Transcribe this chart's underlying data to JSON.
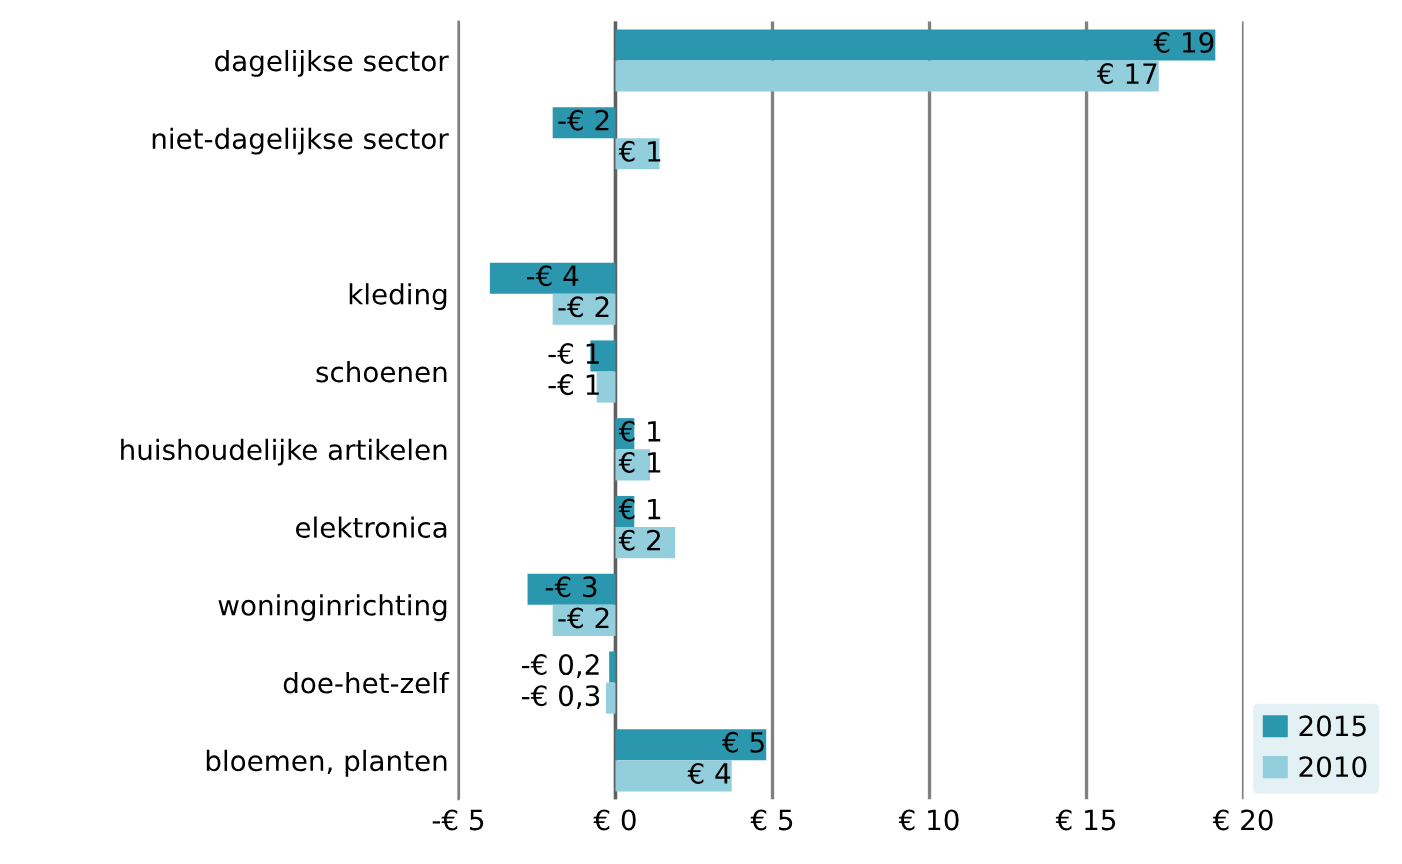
{
  "chart_data": {
    "type": "bar",
    "orientation": "horizontal",
    "categories": [
      "dagelijkse sector",
      "niet-dagelijkse sector",
      null,
      "kleding",
      "schoenen",
      "huishoudelijke artikelen",
      "elektronica",
      "woninginrichting",
      "doe-het-zelf",
      "bloemen, planten"
    ],
    "series": [
      {
        "name": "2015",
        "color": "#2a97ae",
        "values": [
          19.1,
          -2.0,
          null,
          -4.0,
          -0.8,
          0.6,
          0.6,
          -2.8,
          -0.2,
          4.8
        ],
        "value_labels": [
          "€ 19",
          "-€ 2",
          null,
          "-€ 4",
          "-€ 1",
          "€ 1",
          "€ 1",
          "-€ 3",
          "-€ 0,2",
          "€ 5"
        ]
      },
      {
        "name": "2010",
        "color": "#93cedc",
        "values": [
          17.3,
          1.4,
          null,
          -2.0,
          -0.6,
          1.1,
          1.9,
          -2.0,
          -0.3,
          3.7
        ],
        "value_labels": [
          "€ 17",
          "€ 1",
          null,
          "-€ 2",
          "-€ 1",
          "€ 1",
          "€ 2",
          "-€ 2",
          "-€ 0,3",
          "€ 4"
        ]
      }
    ],
    "xlim": [
      -5,
      20
    ],
    "xticks": [
      {
        "value": -5,
        "label": "-€ 5"
      },
      {
        "value": 0,
        "label": "€ 0"
      },
      {
        "value": 5,
        "label": "€ 5"
      },
      {
        "value": 10,
        "label": "€ 10"
      },
      {
        "value": 15,
        "label": "€ 15"
      },
      {
        "value": 20,
        "label": "€ 20"
      }
    ],
    "grid": "x",
    "legend": "bottom right"
  }
}
